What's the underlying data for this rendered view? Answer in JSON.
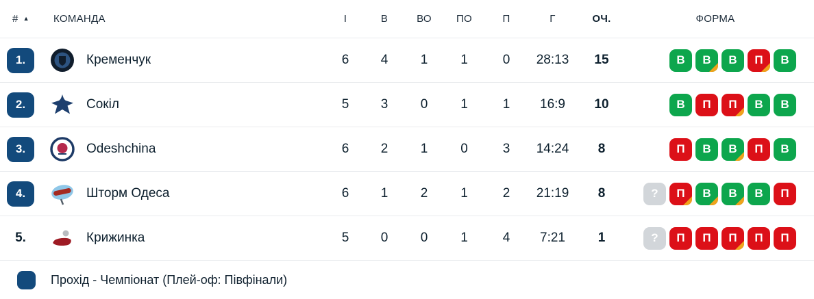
{
  "colors": {
    "accent": "#134a7c",
    "win": "#0da64d",
    "loss": "#dc1018",
    "overtime": "#f0a31c",
    "unknown": "#d2d6da"
  },
  "header": {
    "rank": "#",
    "sort": "▲",
    "team": "КОМАНДА",
    "games": "І",
    "wins": "В",
    "ot_wins": "ВО",
    "ot_losses": "ПО",
    "losses": "П",
    "goals": "Г",
    "points": "ОЧ.",
    "form": "ФОРМА"
  },
  "rows": [
    {
      "rank": "1.",
      "qualified": true,
      "name": "Кременчук",
      "logo": {
        "kind": "round-crest",
        "colors": [
          "#101d2c",
          "#2d5380",
          "#101d2c"
        ]
      },
      "games": "6",
      "wins": "4",
      "ot_wins": "1",
      "ot_losses": "1",
      "losses": "0",
      "goals": "28:13",
      "points": "15",
      "form": [
        {
          "label": "В",
          "result": "win",
          "ot": false
        },
        {
          "label": "В",
          "result": "win",
          "ot": true
        },
        {
          "label": "В",
          "result": "win",
          "ot": false
        },
        {
          "label": "П",
          "result": "loss",
          "ot": true
        },
        {
          "label": "В",
          "result": "win",
          "ot": false
        }
      ]
    },
    {
      "rank": "2.",
      "qualified": true,
      "name": "Сокіл",
      "logo": {
        "kind": "falcon",
        "colors": [
          "#1d3f6e"
        ]
      },
      "games": "5",
      "wins": "3",
      "ot_wins": "0",
      "ot_losses": "1",
      "losses": "1",
      "goals": "16:9",
      "points": "10",
      "form": [
        {
          "label": "В",
          "result": "win",
          "ot": false
        },
        {
          "label": "П",
          "result": "loss",
          "ot": false
        },
        {
          "label": "П",
          "result": "loss",
          "ot": true
        },
        {
          "label": "В",
          "result": "win",
          "ot": false
        },
        {
          "label": "В",
          "result": "win",
          "ot": false
        }
      ]
    },
    {
      "rank": "3.",
      "qualified": true,
      "name": "Odeshchina",
      "logo": {
        "kind": "ring-crest",
        "colors": [
          "#1d3a66",
          "#ffffff",
          "#b5294d"
        ]
      },
      "games": "6",
      "wins": "2",
      "ot_wins": "1",
      "ot_losses": "0",
      "losses": "3",
      "goals": "14:24",
      "points": "8",
      "form": [
        {
          "label": "П",
          "result": "loss",
          "ot": false
        },
        {
          "label": "В",
          "result": "win",
          "ot": false
        },
        {
          "label": "В",
          "result": "win",
          "ot": true
        },
        {
          "label": "П",
          "result": "loss",
          "ot": false
        },
        {
          "label": "В",
          "result": "win",
          "ot": false
        }
      ]
    },
    {
      "rank": "4.",
      "qualified": true,
      "name": "Шторм Одеса",
      "logo": {
        "kind": "storm",
        "colors": [
          "#8fc7e8",
          "#a52a21",
          "#f2c96e"
        ]
      },
      "games": "6",
      "wins": "1",
      "ot_wins": "2",
      "ot_losses": "1",
      "losses": "2",
      "goals": "21:19",
      "points": "8",
      "form": [
        {
          "label": "?",
          "result": "unknown",
          "ot": false
        },
        {
          "label": "П",
          "result": "loss",
          "ot": true
        },
        {
          "label": "В",
          "result": "win",
          "ot": true
        },
        {
          "label": "В",
          "result": "win",
          "ot": true
        },
        {
          "label": "В",
          "result": "win",
          "ot": false
        },
        {
          "label": "П",
          "result": "loss",
          "ot": false
        }
      ]
    },
    {
      "rank": "5.",
      "qualified": false,
      "name": "Крижинка",
      "logo": {
        "kind": "krizhinka",
        "colors": [
          "#9e1b24",
          "#b9bcc0"
        ]
      },
      "games": "5",
      "wins": "0",
      "ot_wins": "0",
      "ot_losses": "1",
      "losses": "4",
      "goals": "7:21",
      "points": "1",
      "form": [
        {
          "label": "?",
          "result": "unknown",
          "ot": false
        },
        {
          "label": "П",
          "result": "loss",
          "ot": false
        },
        {
          "label": "П",
          "result": "loss",
          "ot": false
        },
        {
          "label": "П",
          "result": "loss",
          "ot": true
        },
        {
          "label": "П",
          "result": "loss",
          "ot": false
        },
        {
          "label": "П",
          "result": "loss",
          "ot": false
        }
      ]
    }
  ],
  "legend": {
    "text": "Прохід - Чемпіонат (Плей-оф: Півфінали)"
  }
}
